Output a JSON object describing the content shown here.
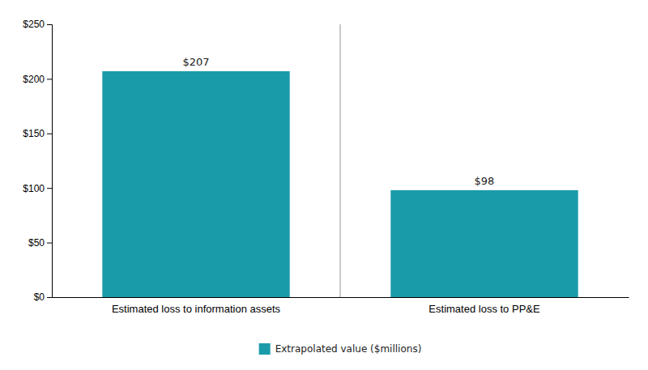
{
  "chart_data": {
    "type": "bar",
    "categories": [
      "Estimated loss to information assets",
      "Estimated loss to PP&E"
    ],
    "series": [
      {
        "name": "Extrapolated value ($millions)",
        "color": "#1a9baa",
        "values": [
          207,
          98
        ],
        "value_labels": [
          "$207",
          "$98"
        ]
      }
    ],
    "ylim": [
      0,
      250
    ],
    "yticks": [
      {
        "value": 0,
        "label": "$0"
      },
      {
        "value": 50,
        "label": "$50"
      },
      {
        "value": 100,
        "label": "$100"
      },
      {
        "value": 150,
        "label": "$150"
      },
      {
        "value": 200,
        "label": "$200"
      },
      {
        "value": 250,
        "label": "$250"
      }
    ],
    "grid": false,
    "legend": "bottom",
    "data_labels": true
  }
}
